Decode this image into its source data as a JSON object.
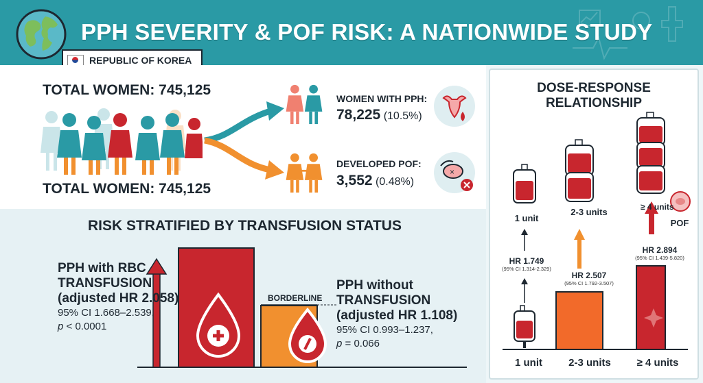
{
  "header": {
    "title": "PPH SEVERITY & POF RISK: A NATIONWIDE STUDY",
    "country": "REPUBLIC OF KOREA"
  },
  "population": {
    "total_label_top": "TOTAL WOMEN: 745,125",
    "total_label_bottom": "TOTAL WOMEN: 745,125"
  },
  "outcomes": {
    "pph_label": "WOMEN WITH PPH:",
    "pph_count": "78,225",
    "pph_pct": "(10.5%)",
    "pof_label": "DEVELOPED POF:",
    "pof_count": "3,552",
    "pof_pct": "(0.48%)"
  },
  "stratified": {
    "heading": "RISK STRATIFIED BY TRANSFUSION STATUS",
    "with": {
      "line1": "PPH with RBC",
      "line2": "TRANSFUSION",
      "line3": "(adjusted HR 2.058)",
      "ci": "95% CI 1.668–2.539,",
      "p_label": "p",
      "p_value": "< 0.0001"
    },
    "without": {
      "line1": "PPH without",
      "line2": "TRANSFUSION",
      "line3": "(adjusted HR 1.108)",
      "ci": "95% CI 0.993–1.237,",
      "p_label": "p",
      "p_value": "= 0.066",
      "tag": "BORDERLINE"
    }
  },
  "dose_response": {
    "title_line1": "DOSE-RESPONSE",
    "title_line2": "RELATIONSHIP",
    "outcome_label": "POF",
    "groups": [
      {
        "unit_label": "1 unit",
        "x_label": "1 unit",
        "hr": "HR 1.749",
        "ci": "(95% CI 1.314-2.329)"
      },
      {
        "unit_label": "2-3 units",
        "x_label": "2-3 units",
        "hr": "HR 2.507",
        "ci": "(95% CI 1.792-3.507)"
      },
      {
        "unit_label": "≥ 4 units",
        "x_label": "≥ 4 units",
        "hr": "HR 2.894",
        "ci": "(95% CI 1.439-5.820)"
      }
    ]
  },
  "colors": {
    "teal": "#2a9aa5",
    "red": "#c8262e",
    "orange": "#f1902f",
    "dark": "#1d2730"
  }
}
